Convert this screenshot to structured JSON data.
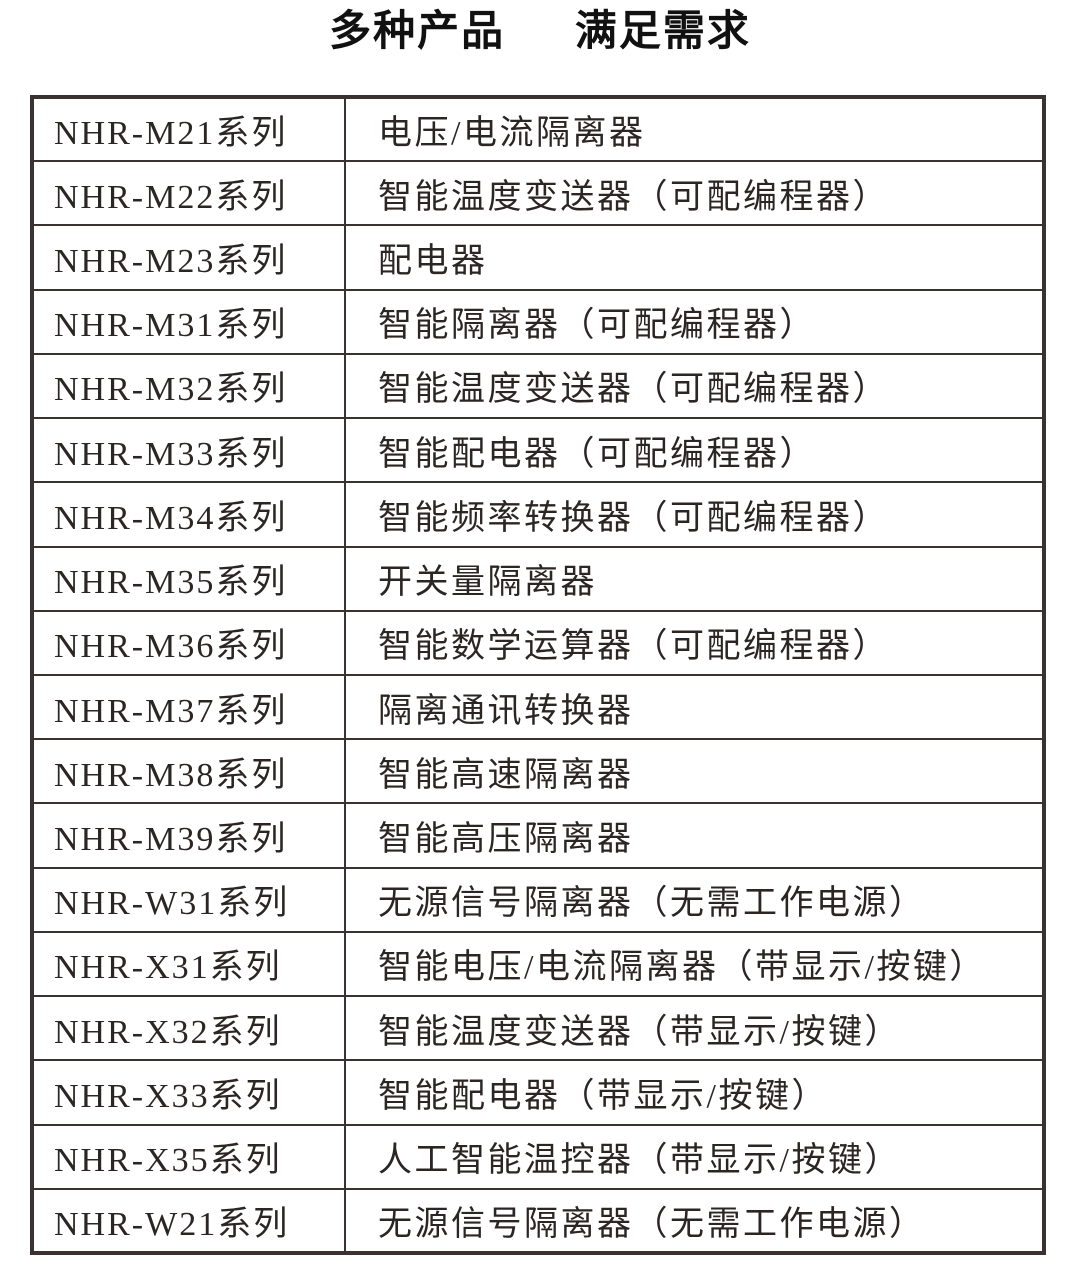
{
  "title": {
    "part1": "多种产品",
    "part2": "满足需求"
  },
  "colors": {
    "background": "#ffffff",
    "border": "#3a3230",
    "table_text": "#2b2523",
    "title_text": "#111111"
  },
  "table": {
    "rows": [
      {
        "series": "NHR-M21系列",
        "description": "电压/电流隔离器"
      },
      {
        "series": "NHR-M22系列",
        "description": "智能温度变送器（可配编程器）"
      },
      {
        "series": "NHR-M23系列",
        "description": "配电器"
      },
      {
        "series": "NHR-M31系列",
        "description": "智能隔离器（可配编程器）"
      },
      {
        "series": "NHR-M32系列",
        "description": "智能温度变送器（可配编程器）"
      },
      {
        "series": "NHR-M33系列",
        "description": "智能配电器（可配编程器）"
      },
      {
        "series": "NHR-M34系列",
        "description": "智能频率转换器（可配编程器）"
      },
      {
        "series": "NHR-M35系列",
        "description": "开关量隔离器"
      },
      {
        "series": "NHR-M36系列",
        "description": "智能数学运算器（可配编程器）"
      },
      {
        "series": "NHR-M37系列",
        "description": "隔离通讯转换器"
      },
      {
        "series": "NHR-M38系列",
        "description": "智能高速隔离器"
      },
      {
        "series": "NHR-M39系列",
        "description": "智能高压隔离器"
      },
      {
        "series": "NHR-W31系列",
        "description": "无源信号隔离器（无需工作电源）"
      },
      {
        "series": "NHR-X31系列",
        "description": "智能电压/电流隔离器（带显示/按键）"
      },
      {
        "series": "NHR-X32系列",
        "description": "智能温度变送器（带显示/按键）"
      },
      {
        "series": "NHR-X33系列",
        "description": "智能配电器（带显示/按键）"
      },
      {
        "series": "NHR-X35系列",
        "description": "人工智能温控器（带显示/按键）"
      },
      {
        "series": "NHR-W21系列",
        "description": "无源信号隔离器（无需工作电源）"
      }
    ]
  }
}
